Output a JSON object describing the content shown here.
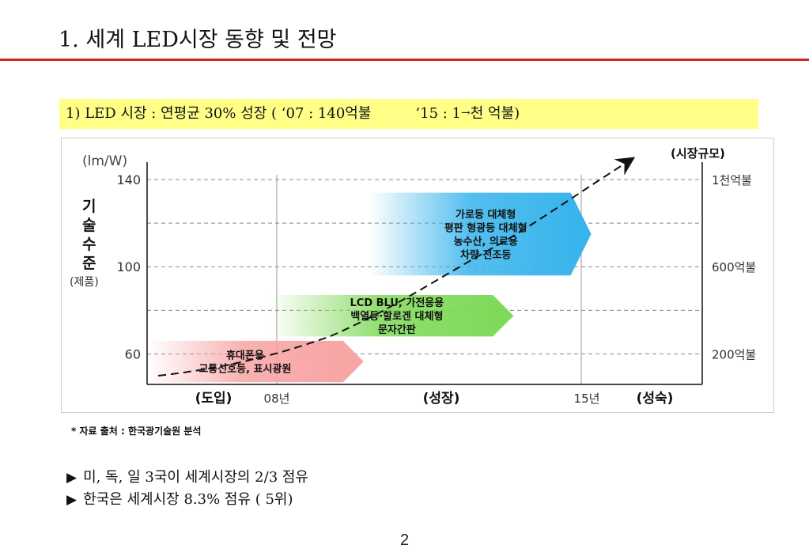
{
  "title": "1. 세계 LED시장 동향 및 전망",
  "subtitle": {
    "part1": "1) LED 시장 : 연평균 30% 성장 ( ‘07 : 140억불",
    "part2_pre": "‘15 : ",
    "arrow_text": "1",
    "arrow_glyph": "→",
    "part2_post": "천 억불)"
  },
  "chart_data": {
    "type": "diagram",
    "unit_label": "(lm/W)",
    "market_label": "(시장규모)",
    "y_axis_title": [
      "기",
      "술",
      "수",
      "준"
    ],
    "y_axis_subtitle": "(제품)",
    "y_ticks": [
      140,
      100,
      60
    ],
    "ylim": [
      46,
      148
    ],
    "right_labels": [
      {
        "value": 140,
        "text": "1천억불"
      },
      {
        "value": 100,
        "text": "600억불"
      },
      {
        "value": 60,
        "text": "200억불"
      }
    ],
    "extra_gridlines": [
      120,
      80
    ],
    "phases": [
      "(도입)",
      "(성장)",
      "(성숙)"
    ],
    "x_marks": [
      "08년",
      "15년"
    ],
    "arrows": [
      {
        "color": "#f7a3a3",
        "start": 0.0,
        "end": 0.39,
        "level": [
          47,
          66
        ],
        "texts": [
          "휴대폰용",
          "교통신호등, 표시광원"
        ]
      },
      {
        "color": "#7ed957",
        "start": 0.22,
        "end": 0.66,
        "level": [
          68,
          87
        ],
        "texts": [
          "LCD BLU, 가전응용",
          "백열등·할로겐 대체형",
          "문자간판"
        ]
      },
      {
        "color": "#36b3ec",
        "start": 0.4,
        "end": 0.8,
        "level": [
          96,
          134
        ],
        "texts": [
          "가로등 대체형",
          "평판 형광등 대체형",
          "농수산, 의료용",
          "차량 전조등"
        ]
      }
    ],
    "trend": "rising dashed curve from introduction to maturity"
  },
  "source": "* 자료 출처 : 한국광기술원 분석",
  "bullets": [
    {
      "mark": "▶",
      "text": "미, 독, 일 3국이 세계시장의 2/3 점유"
    },
    {
      "mark": "▶",
      "text": "한국은 세계시장 8.3% 점유 ( 5위)"
    }
  ],
  "page_number": "2"
}
